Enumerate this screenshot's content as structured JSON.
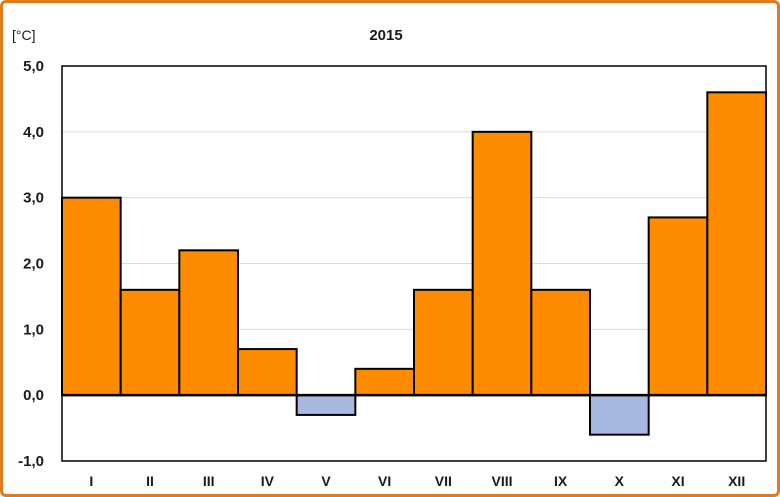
{
  "chart_data": {
    "type": "bar",
    "title": "2015",
    "unit_label": "[°C]",
    "categories": [
      "I",
      "II",
      "III",
      "IV",
      "V",
      "VI",
      "VII",
      "VIII",
      "IX",
      "X",
      "XI",
      "XII"
    ],
    "values": [
      3.0,
      1.6,
      2.2,
      0.7,
      -0.3,
      0.4,
      1.6,
      4.0,
      1.6,
      -0.6,
      2.7,
      4.6
    ],
    "ylim": [
      -1.0,
      5.0
    ],
    "yticks": [
      5.0,
      4.0,
      3.0,
      2.0,
      1.0,
      0.0,
      -1.0
    ],
    "ytick_labels": [
      "5,0",
      "4,0",
      "3,0",
      "2,0",
      "1,0",
      "0,0",
      "-1,0"
    ],
    "xlabel": "",
    "ylabel": "",
    "grid": true,
    "colors": {
      "positive": "#ff8c00",
      "negative": "#a7b9e0",
      "bar_border": "#000000",
      "grid": "#d9d9d9",
      "frame": "#e07b1f"
    }
  }
}
